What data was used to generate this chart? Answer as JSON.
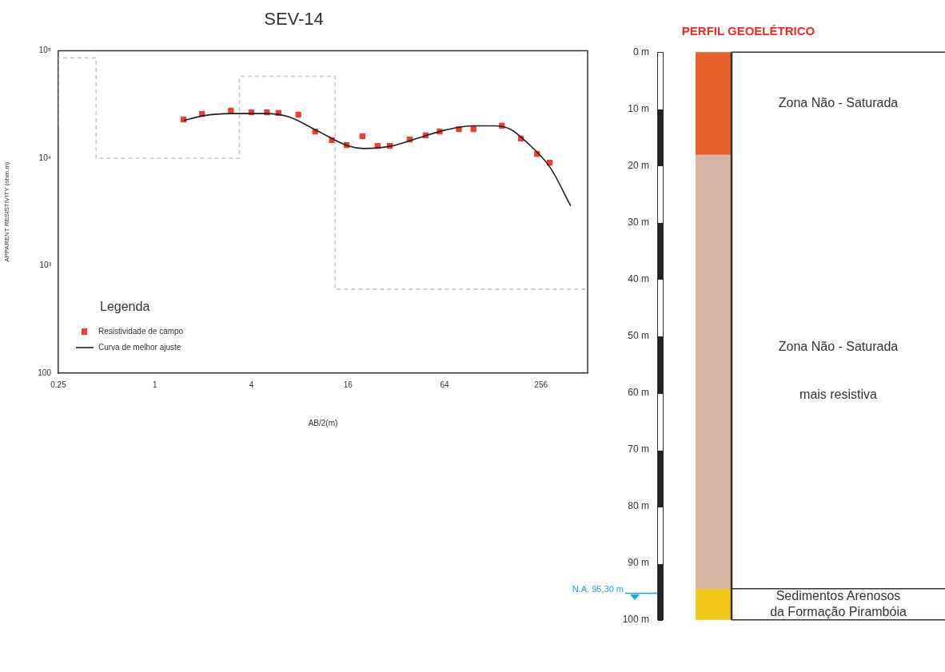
{
  "chart_data": [
    {
      "type": "scatter",
      "title": "SEV-14",
      "xlabel": "AB/2(m)",
      "ylabel": "APPARENT RESISTIVITY (ohm.m)",
      "legend_title": "Legenda",
      "log": "xy",
      "grid": false,
      "legend": "bottom left",
      "xlim": [
        0.25,
        500
      ],
      "xticks": [
        {
          "value": 0.25,
          "label": "0.25"
        },
        1,
        4,
        16,
        64,
        256
      ],
      "ylim": [
        100,
        100000
      ],
      "yticks": [
        100,
        {
          "value": 1000,
          "label": "10³"
        },
        {
          "value": 10000,
          "label": "10⁴"
        },
        {
          "value": 100000,
          "label": "10⁵"
        }
      ],
      "series": [
        {
          "name": "Resistividade de campo",
          "type": "scatter",
          "marker": "square",
          "color": "#f03c32",
          "x": [
            1.51,
            1.97,
            2.98,
            4.0,
            5.0,
            5.9,
            7.85,
            10.0,
            12.7,
            15.7,
            19.7,
            24.5,
            29.2,
            38.8,
            48.8,
            59.7,
            78.8,
            97,
            146,
            192,
            242,
            290
          ],
          "values": [
            22900,
            25800,
            27700,
            26700,
            26700,
            26300,
            25400,
            17700,
            14700,
            13200,
            16000,
            13000,
            13000,
            14900,
            16300,
            17700,
            18600,
            18600,
            20000,
            15200,
            10960,
            9080
          ]
        },
        {
          "name": "Curva de melhor ajuste",
          "type": "line",
          "marker": "none",
          "color": "#202020",
          "x": [
            1.51,
            2.0,
            3.0,
            4.9,
            6.8,
            10.5,
            16,
            20,
            30,
            41,
            65,
            96,
            131,
            165,
            207,
            292,
            392
          ],
          "values": [
            22300,
            24800,
            26000,
            26000,
            24300,
            17700,
            13000,
            12300,
            13000,
            14900,
            18300,
            20000,
            20000,
            18600,
            14200,
            8180,
            3600
          ]
        },
        {
          "type": "step",
          "marker": "none",
          "line_style": "dashed",
          "color": "#c8c8c8",
          "x": [
            0.25,
            0.43,
            3.37,
            13.3,
            83,
            500
          ],
          "values": [
            20300,
            85700,
            10000,
            57800,
            604,
            604
          ]
        }
      ]
    },
    {
      "type": "bar",
      "title": "PERFIL GEOELÉTRICO",
      "stacked": true,
      "legend": false,
      "tick_labels": "y",
      "categories": [
        null
      ],
      "ylim": [
        100,
        0
      ],
      "yticks": [
        {
          "value": 0,
          "label": "0 m"
        },
        {
          "value": 10,
          "label": "10 m"
        },
        {
          "value": 20,
          "label": "20 m"
        },
        {
          "value": 30,
          "label": "30 m"
        },
        {
          "value": 40,
          "label": "40 m"
        },
        {
          "value": 50,
          "label": "50 m"
        },
        {
          "value": 60,
          "label": "60 m"
        },
        {
          "value": 70,
          "label": "70 m"
        },
        {
          "value": 80,
          "label": "80 m"
        },
        {
          "value": 90,
          "label": "90 m"
        },
        {
          "value": 100,
          "label": "100 m"
        }
      ],
      "series": [
        {
          "name": "Zona Não - Saturada",
          "color": "#e8602c",
          "values": [
            18
          ]
        },
        {
          "name": "Zona Não - Saturada\nmais resistiva",
          "color": "#d9b3a3",
          "values": [
            76.5
          ]
        },
        {
          "name": "Sedimentos Arenosos\nda Formação Pirambóia",
          "color": "#f2c81a",
          "values": [
            5.5
          ]
        }
      ],
      "ref_lines": [
        {
          "axis": "y",
          "value": 95.3,
          "label": "N.A. 95,30 m",
          "color": "#1ea0e6"
        }
      ]
    }
  ]
}
